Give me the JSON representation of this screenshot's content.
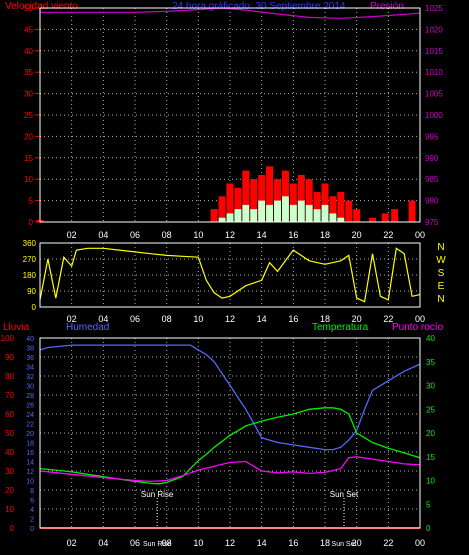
{
  "chart_data": [
    {
      "type": "line",
      "title": "24 hora gráficado: 30 Septiembre 2014",
      "left_axis_label": "Velocidad viento",
      "right_axis_label": "Presión",
      "y_left": {
        "min": 0,
        "max": 50,
        "ticks": [
          0,
          5,
          10,
          15,
          20,
          25,
          30,
          35,
          40,
          45,
          50
        ]
      },
      "y_right": {
        "min": 975,
        "max": 1025,
        "ticks": [
          975,
          980,
          985,
          990,
          995,
          1000,
          1005,
          1010,
          1015,
          1020,
          1025
        ]
      },
      "x_ticks": [
        "02",
        "04",
        "06",
        "08",
        "10",
        "12",
        "14",
        "16",
        "18",
        "20",
        "22",
        "00"
      ],
      "grid": true,
      "series": [
        {
          "name": "Presión",
          "axis": "right",
          "color": "#cc00cc",
          "x": [
            0,
            2,
            4,
            6,
            8,
            10,
            11.5,
            13,
            15,
            17,
            19,
            21,
            23,
            24
          ],
          "y": [
            1024.0,
            1024.0,
            1024.0,
            1024.0,
            1024.2,
            1024.6,
            1025.0,
            1024.5,
            1023.6,
            1022.8,
            1022.6,
            1023.0,
            1023.5,
            1023.8
          ]
        },
        {
          "name": "",
          "axis": "left",
          "color": "#ff0000",
          "style": "bars",
          "x": [
            0,
            11.0,
            11.5,
            12,
            12.5,
            13,
            13.5,
            14,
            14.5,
            15,
            15.5,
            16,
            16.5,
            17,
            17.5,
            18,
            18.5,
            19,
            19.5,
            20,
            21,
            21.8,
            22.4,
            23.5
          ],
          "y": [
            0.5,
            3,
            6,
            9,
            8,
            12,
            10,
            11,
            13,
            10,
            12,
            9,
            11,
            10,
            7,
            9,
            6,
            7,
            5,
            3,
            1,
            2,
            3,
            5
          ]
        },
        {
          "name": "",
          "axis": "left",
          "color": "#ccffcc",
          "style": "bars",
          "x": [
            11.5,
            12,
            12.5,
            13,
            13.5,
            14,
            14.5,
            15,
            15.5,
            16,
            16.5,
            17,
            17.5,
            18,
            18.5,
            19
          ],
          "y": [
            1,
            2,
            3,
            4,
            3,
            5,
            4,
            5,
            6,
            4,
            5,
            4,
            3,
            4,
            2,
            1
          ]
        }
      ]
    },
    {
      "type": "line",
      "y_left": {
        "min": 0,
        "max": 360,
        "ticks": [
          0,
          90,
          180,
          270,
          360
        ]
      },
      "right_labels": [
        "N",
        "W",
        "S",
        "E",
        "N"
      ],
      "x_ticks": [
        "02",
        "04",
        "06",
        "08",
        "10",
        "12",
        "14",
        "16",
        "18",
        "20",
        "22",
        "00"
      ],
      "grid": true,
      "series": [
        {
          "name": "",
          "color": "#ffff00",
          "x": [
            0,
            0.5,
            1,
            1.5,
            2,
            2.3,
            3,
            4,
            5,
            6,
            7,
            8,
            9,
            10,
            10.5,
            11,
            11.5,
            12,
            13,
            14,
            14.5,
            15,
            16,
            17,
            18,
            19,
            19.5,
            20,
            20.5,
            21,
            21.5,
            22,
            22.5,
            23,
            23.5,
            24
          ],
          "y": [
            40,
            270,
            50,
            280,
            230,
            320,
            330,
            330,
            320,
            310,
            300,
            290,
            285,
            280,
            150,
            80,
            50,
            60,
            120,
            150,
            250,
            200,
            320,
            260,
            240,
            260,
            290,
            50,
            30,
            300,
            60,
            40,
            330,
            300,
            60,
            70
          ]
        }
      ]
    },
    {
      "type": "line",
      "left_axis_label": "Lluvia",
      "humidity_label": "Humedad",
      "temperature_label": "Temperatura",
      "dewpoint_label": "Punto rocío",
      "y_rain": {
        "min": 0,
        "max": 100,
        "ticks": [
          0,
          10,
          20,
          30,
          40,
          50,
          60,
          70,
          80,
          90,
          100
        ]
      },
      "y_humidity": {
        "min": 0,
        "max": 40,
        "ticks": [
          0,
          2,
          4,
          6,
          8,
          10,
          12,
          14,
          16,
          18,
          20,
          22,
          24,
          26,
          28,
          30,
          32,
          34,
          36,
          38,
          40
        ]
      },
      "y_temperature": {
        "min": 0,
        "max": 40,
        "ticks": [
          0,
          5,
          10,
          15,
          20,
          25,
          30,
          35,
          40
        ]
      },
      "x_ticks": [
        "02",
        "04",
        "06",
        "08",
        "10",
        "12",
        "14",
        "16",
        "18",
        "20",
        "22",
        "00"
      ],
      "annotations": [
        {
          "label": "Sun Rise",
          "x": 7.4
        },
        {
          "label": "Sun Set",
          "x": 19.2
        }
      ],
      "bottom_time_labels": [
        "Sun Rise",
        "Sun Set"
      ],
      "grid": true,
      "series": [
        {
          "name": "Humedad",
          "axis": "y_humidity",
          "color": "#5566ff",
          "x": [
            0,
            0.5,
            2,
            4,
            6,
            8,
            9.5,
            10,
            10.5,
            11,
            11.5,
            12,
            12.5,
            13,
            13.5,
            14,
            15,
            16,
            17,
            18,
            18.5,
            19,
            19.5,
            20,
            20.5,
            21,
            22,
            23,
            24
          ],
          "y": [
            37.5,
            38.0,
            38.5,
            38.5,
            38.5,
            38.5,
            38.5,
            37.5,
            36.5,
            35.0,
            32.5,
            30.0,
            27.5,
            25.0,
            22.0,
            19.0,
            18.0,
            17.5,
            17.0,
            16.5,
            16.5,
            17.0,
            18.5,
            20.5,
            25.0,
            29.0,
            31.0,
            33.0,
            34.5
          ]
        },
        {
          "name": "Temperatura",
          "axis": "y_temperature",
          "color": "#00ee00",
          "x": [
            0,
            1,
            2,
            3,
            4,
            5,
            6,
            7,
            7.5,
            8,
            9,
            9.5,
            10,
            10.5,
            11,
            12,
            13,
            14,
            15,
            16,
            17,
            18,
            18.5,
            19,
            19.5,
            20,
            21,
            22,
            23,
            24
          ],
          "y": [
            12.5,
            12.2,
            11.8,
            11.3,
            10.8,
            10.3,
            9.8,
            9.4,
            9.3,
            9.6,
            10.8,
            12.5,
            14.2,
            15.5,
            17.0,
            19.5,
            21.5,
            22.5,
            23.3,
            24.0,
            25.0,
            25.3,
            25.3,
            25.0,
            24.0,
            20.0,
            18.0,
            16.8,
            15.8,
            14.8
          ]
        },
        {
          "name": "Punto rocío",
          "axis": "y_temperature",
          "color": "#ff00ff",
          "x": [
            0,
            2,
            4,
            6,
            7,
            8,
            9,
            10,
            11,
            12,
            13,
            14,
            15,
            16,
            17,
            18,
            19,
            19.5,
            20,
            21,
            22,
            23,
            24
          ],
          "y": [
            12.0,
            11.3,
            10.6,
            10.0,
            9.8,
            10.0,
            11.0,
            12.2,
            13.0,
            13.8,
            14.0,
            12.0,
            11.6,
            11.8,
            11.5,
            11.7,
            12.5,
            14.8,
            15.0,
            14.5,
            14.0,
            13.5,
            13.3
          ]
        },
        {
          "name": "Lluvia",
          "axis": "y_rain",
          "color": "#ff0000",
          "x": [
            0,
            24
          ],
          "y": [
            0,
            0
          ]
        }
      ]
    }
  ],
  "colors": {
    "background": "#000000",
    "grid": "#ffffff",
    "wind_title": "#ff0000",
    "pressure_title": "#cc00cc",
    "title_center": "#3333ff",
    "direction": "#ffff00",
    "rain": "#ff0000",
    "humidity": "#5566ff",
    "temperature": "#00ee00",
    "dewpoint": "#ff00ff"
  }
}
